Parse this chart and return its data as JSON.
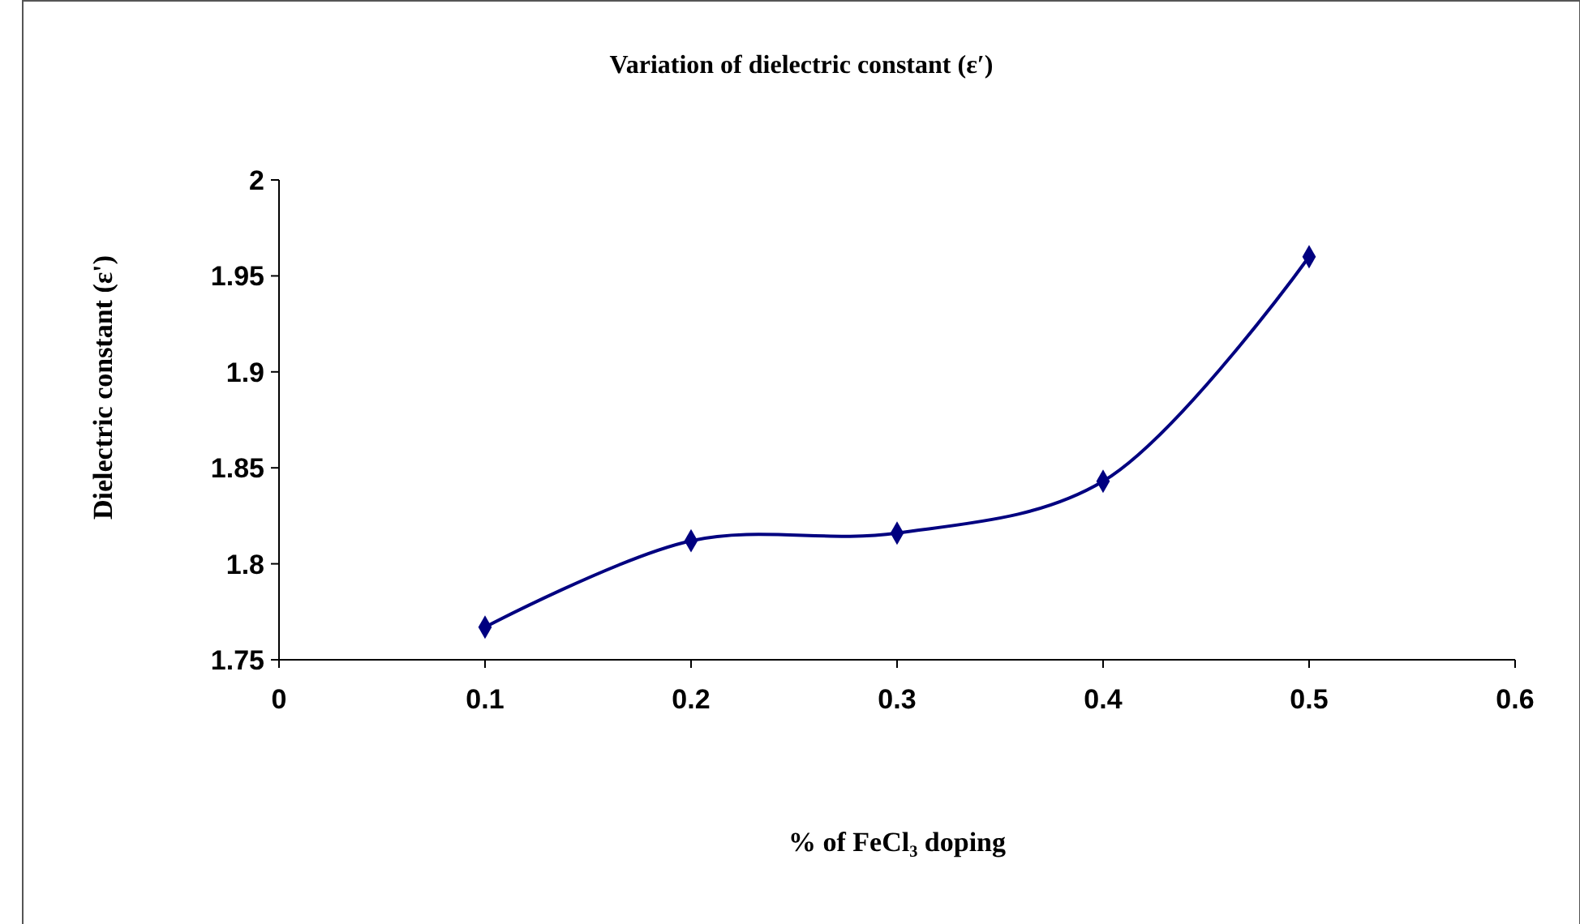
{
  "chart_data": {
    "type": "line",
    "title": "Variation of  dielectric constant (ε′)",
    "xlabel": "% of FeCl₃ doping",
    "ylabel": "Dielectric constant (ε')",
    "x": [
      0.1,
      0.2,
      0.3,
      0.4,
      0.5
    ],
    "series": [
      {
        "color": "#000080",
        "values": [
          1.767,
          1.812,
          1.816,
          1.843,
          1.96
        ]
      }
    ],
    "xlim": [
      0,
      0.6
    ],
    "xticks": [
      0,
      0.1,
      0.2,
      0.3,
      0.4,
      0.5,
      0.6
    ],
    "ylim": [
      1.75,
      2
    ],
    "yticks": [
      1.75,
      1.8,
      1.85,
      1.9,
      1.95,
      2
    ],
    "marker": "diamond"
  }
}
